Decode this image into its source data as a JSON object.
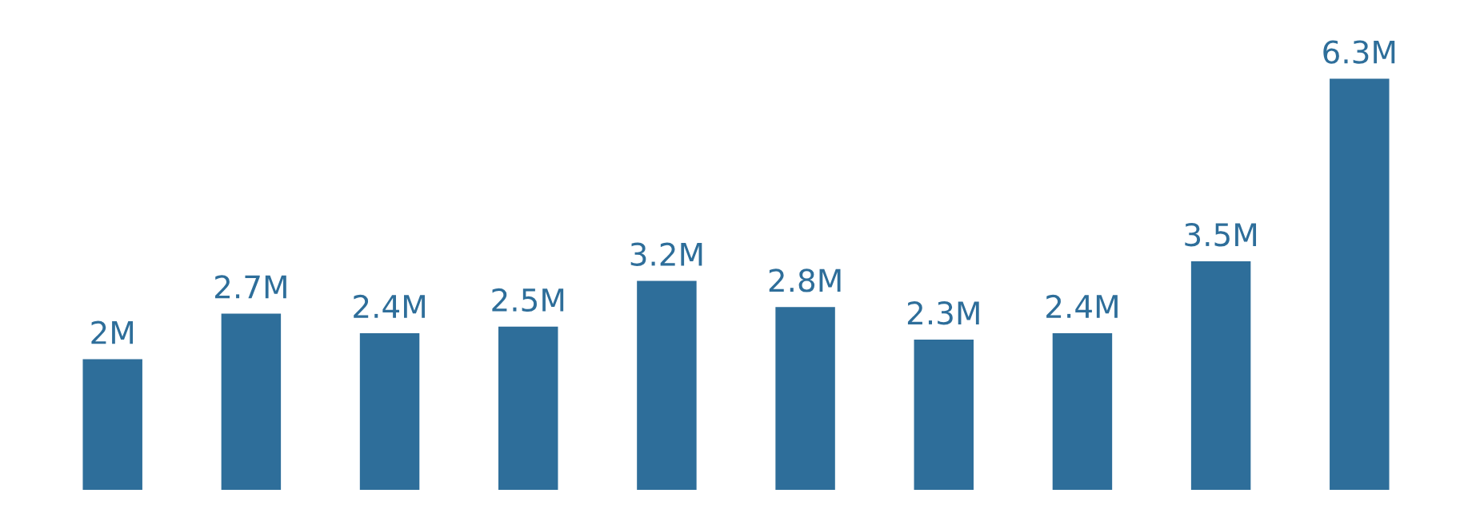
{
  "chart_data": {
    "type": "bar",
    "categories": [
      null,
      null,
      null,
      null,
      null,
      null,
      null,
      null,
      null,
      null
    ],
    "values": [
      2,
      2.7,
      2.4,
      2.5,
      3.2,
      2.8,
      2.3,
      2.4,
      3.5,
      6.3
    ],
    "value_labels": [
      "2M",
      "2.7M",
      "2.4M",
      "2.5M",
      "3.2M",
      "2.8M",
      "2.3M",
      "2.4M",
      "3.5M",
      "6.3M"
    ],
    "color": "#2e6e9a"
  }
}
